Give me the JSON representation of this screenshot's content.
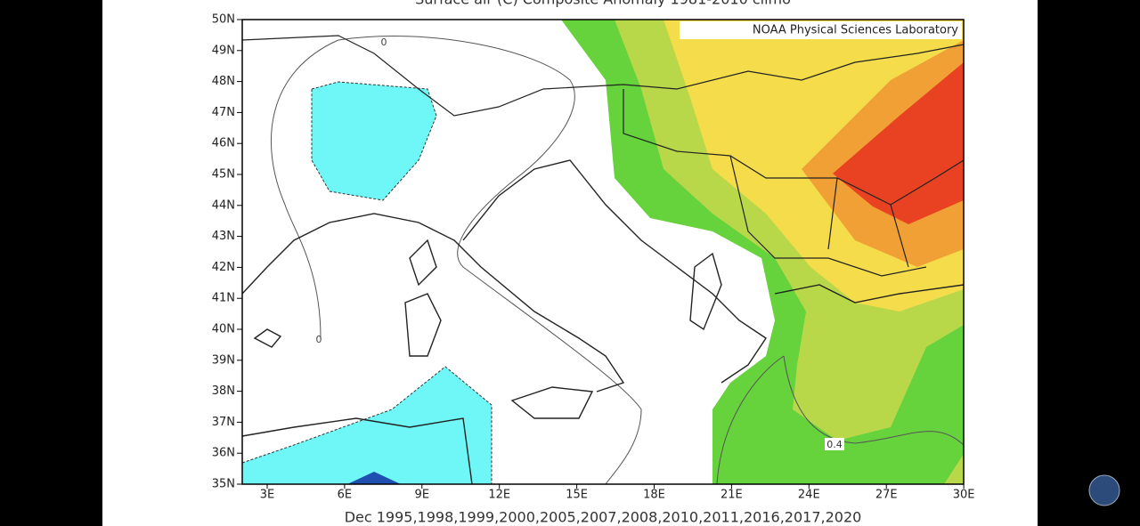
{
  "map": {
    "title": "Surface air (C) Composite Anomaly 1981-2010 climo",
    "credit": "NOAA Physical Sciences Laboratory",
    "lat_labels": [
      "50N",
      "49N",
      "48N",
      "47N",
      "46N",
      "45N",
      "44N",
      "43N",
      "42N",
      "41N",
      "40N",
      "39N",
      "38N",
      "37N",
      "36N",
      "35N"
    ],
    "lon_labels": [
      "3E",
      "6E",
      "9E",
      "12E",
      "15E",
      "18E",
      "21E",
      "24E",
      "27E",
      "30E"
    ],
    "caption": "Dec 1995,1998,1999,2000,2005,2007,2008,2010,2011,2016,2017,2020",
    "contour_labels": [
      "0",
      "0",
      "0.4"
    ]
  }
}
